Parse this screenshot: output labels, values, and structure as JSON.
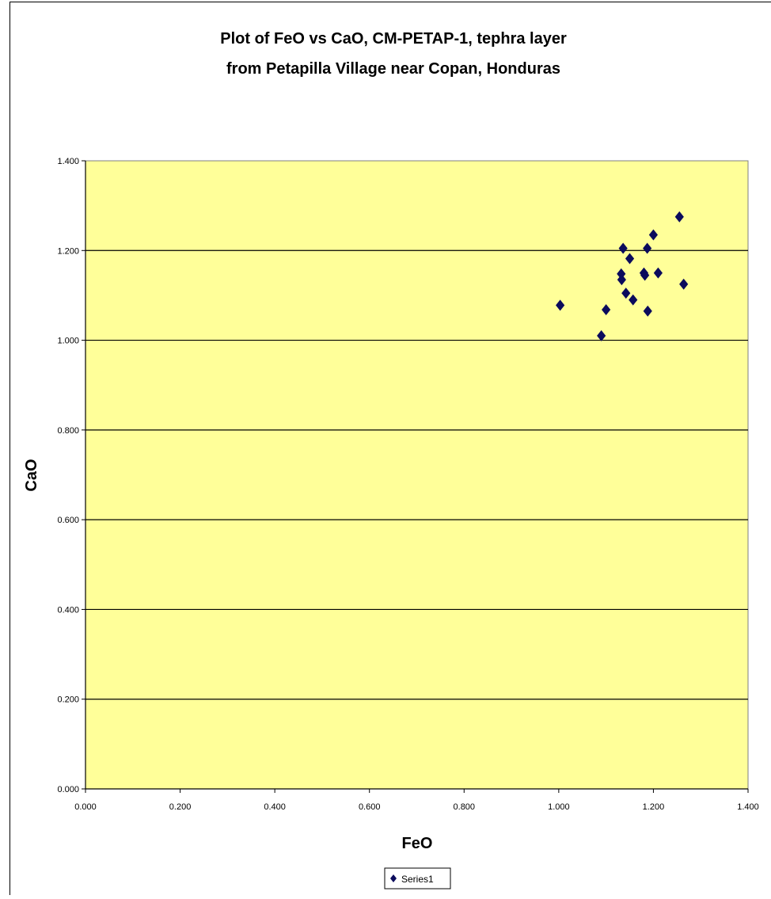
{
  "chart_data": {
    "type": "scatter",
    "title_line1": "Plot of FeO vs CaO, CM-PETAP-1, tephra layer",
    "title_line2": "from Petapilla Village near Copan, Honduras",
    "xlabel": "FeO",
    "ylabel": "CaO",
    "xlim": [
      0,
      1.4
    ],
    "ylim": [
      0,
      1.4
    ],
    "x_ticks": [
      "0.000",
      "0.200",
      "0.400",
      "0.600",
      "0.800",
      "1.000",
      "1.200",
      "1.400"
    ],
    "y_ticks": [
      "0.000",
      "0.200",
      "0.400",
      "0.600",
      "0.800",
      "1.000",
      "1.200",
      "1.400"
    ],
    "grid": "horizontal major gridlines",
    "legend_position": "bottom",
    "plot_area_color": "#FFFF99",
    "series": [
      {
        "name": "Series1",
        "color": "#0B0B5C",
        "marker": "diamond",
        "points": [
          [
            1.003,
            1.078
          ],
          [
            1.09,
            1.01
          ],
          [
            1.1,
            1.068
          ],
          [
            1.132,
            1.148
          ],
          [
            1.133,
            1.135
          ],
          [
            1.136,
            1.205
          ],
          [
            1.142,
            1.105
          ],
          [
            1.15,
            1.182
          ],
          [
            1.157,
            1.09
          ],
          [
            1.18,
            1.15
          ],
          [
            1.182,
            1.145
          ],
          [
            1.187,
            1.205
          ],
          [
            1.188,
            1.065
          ],
          [
            1.2,
            1.235
          ],
          [
            1.21,
            1.15
          ],
          [
            1.255,
            1.275
          ],
          [
            1.264,
            1.125
          ]
        ]
      }
    ]
  }
}
